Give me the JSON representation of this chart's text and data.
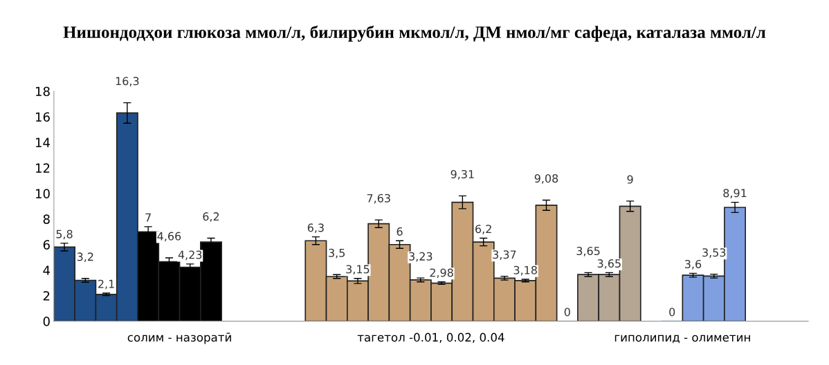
{
  "chart_data": {
    "type": "bar",
    "title": "Нишондодҳои глюкоза ммол/л, билирубин мкмол/л, ДМ нмол/мг сафеда, каталаза ммол/л",
    "categories": [
      "солим - назоратӣ",
      "тагетол -0.01, 0.02, 0.04",
      "гиполипид - олиметин"
    ],
    "series": [
      {
        "values": [
          5.8,
          6.3,
          0
        ],
        "colors": [
          "#1f4e89",
          "#c8a276",
          "#b5a593"
        ],
        "errors": [
          0.3,
          0.3,
          null
        ],
        "value_labels": [
          "5,8",
          "6,3",
          "0"
        ]
      },
      {
        "values": [
          3.2,
          3.5,
          3.65
        ],
        "colors": [
          "#1f4e89",
          "#c8a276",
          "#b5a593"
        ],
        "errors": [
          0.15,
          0.15,
          0.15
        ],
        "value_labels": [
          "3,2",
          "3,5",
          "3,65"
        ]
      },
      {
        "values": [
          2.1,
          3.15,
          3.65
        ],
        "colors": [
          "#1f4e89",
          "#c8a276",
          "#b5a593"
        ],
        "errors": [
          0.1,
          0.2,
          0.15
        ],
        "value_labels": [
          "2,1",
          "3,15",
          "3,65"
        ]
      },
      {
        "values": [
          16.3,
          7.63,
          9
        ],
        "colors": [
          "#1f4e89",
          "#c8a276",
          "#b5a593"
        ],
        "errors": [
          0.8,
          0.3,
          0.4
        ],
        "value_labels": [
          "16,3",
          "7,63",
          "9"
        ]
      },
      {
        "values": [
          7,
          6,
          null
        ],
        "colors": [
          "#000000",
          "#c8a276",
          "#7f9fe0"
        ],
        "errors": [
          0.4,
          0.3,
          null
        ],
        "value_labels": [
          "7",
          "6",
          null
        ]
      },
      {
        "values": [
          4.66,
          3.23,
          0
        ],
        "colors": [
          "#000000",
          "#c8a276",
          "#7f9fe0"
        ],
        "errors": [
          0.3,
          0.15,
          null
        ],
        "value_labels": [
          "4,66",
          "3,23",
          "0"
        ]
      },
      {
        "values": [
          4.23,
          2.98,
          3.6
        ],
        "colors": [
          "#000000",
          "#c8a276",
          "#7f9fe0"
        ],
        "errors": [
          0.25,
          0.1,
          0.15
        ],
        "value_labels": [
          "4,23",
          "2,98",
          "3,6"
        ]
      },
      {
        "values": [
          6.2,
          9.31,
          3.53
        ],
        "colors": [
          "#000000",
          "#c8a276",
          "#7f9fe0"
        ],
        "errors": [
          0.3,
          0.5,
          0.15
        ],
        "value_labels": [
          "6,2",
          "9,31",
          "3,53"
        ]
      },
      {
        "values": [
          null,
          6.2,
          8.91
        ],
        "colors": [
          "#000000",
          "#c8a276",
          "#7f9fe0"
        ],
        "errors": [
          null,
          0.3,
          0.4
        ],
        "value_labels": [
          null,
          "6,2",
          "8,91"
        ]
      },
      {
        "values": [
          null,
          3.37,
          null
        ],
        "colors": [
          "#000000",
          "#c8a276",
          "#7f9fe0"
        ],
        "errors": [
          null,
          0.15,
          null
        ],
        "value_labels": [
          null,
          "3,37",
          null
        ]
      },
      {
        "values": [
          null,
          3.18,
          null
        ],
        "colors": [
          "#000000",
          "#c8a276",
          "#7f9fe0"
        ],
        "errors": [
          null,
          0.1,
          null
        ],
        "value_labels": [
          null,
          "3,18",
          null
        ]
      },
      {
        "values": [
          null,
          9.08,
          null
        ],
        "colors": [
          "#000000",
          "#c8a276",
          "#7f9fe0"
        ],
        "errors": [
          null,
          0.4,
          null
        ],
        "value_labels": [
          null,
          "9,08",
          null
        ]
      }
    ],
    "ylim": [
      0,
      18
    ],
    "yticks": [
      0,
      2,
      4,
      6,
      8,
      10,
      12,
      14,
      16,
      18
    ],
    "grid": false,
    "legend": false
  }
}
